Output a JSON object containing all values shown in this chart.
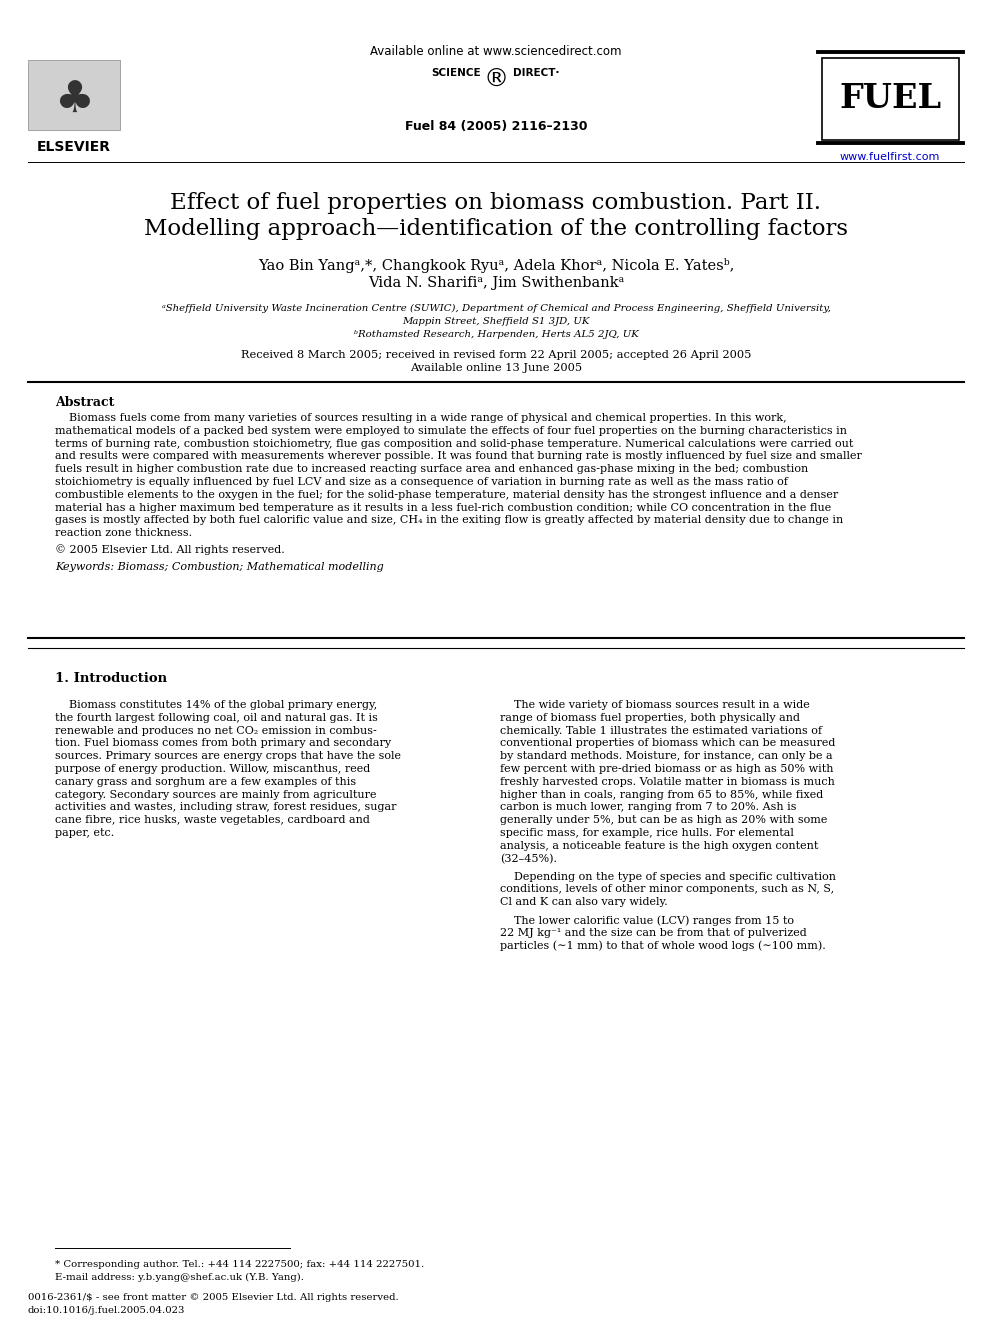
{
  "bg_color": "#ffffff",
  "header_available": "Available online at www.sciencedirect.com",
  "header_journal": "Fuel 84 (2005) 2116–2130",
  "header_website": "www.fuelfirst.com",
  "header_website_color": "#0000cc",
  "title_line1": "Effect of fuel properties on biomass combustion. Part II.",
  "title_line2": "Modelling approach—identification of the controlling factors",
  "authors1": "Yao Bin Yangᵃ,*, Changkook Ryuᵃ, Adela Khorᵃ, Nicola E. Yatesᵇ,",
  "authors2": "Vida N. Sharifiᵃ, Jim Swithenbankᵃ",
  "affil_a": "ᵃSheffield University Waste Incineration Centre (SUWIC), Department of Chemical and Process Engineering, Sheffield University,",
  "affil_a2": "Mappin Street, Sheffield S1 3JD, UK",
  "affil_b": "ᵇRothamsted Research, Harpenden, Herts AL5 2JQ, UK",
  "dates1": "Received 8 March 2005; received in revised form 22 April 2005; accepted 26 April 2005",
  "dates2": "Available online 13 June 2005",
  "abstract_title": "Abstract",
  "abstract_lines": [
    "    Biomass fuels come from many varieties of sources resulting in a wide range of physical and chemical properties. In this work,",
    "mathematical models of a packed bed system were employed to simulate the effects of four fuel properties on the burning characteristics in",
    "terms of burning rate, combustion stoichiometry, flue gas composition and solid-phase temperature. Numerical calculations were carried out",
    "and results were compared with measurements wherever possible. It was found that burning rate is mostly influenced by fuel size and smaller",
    "fuels result in higher combustion rate due to increased reacting surface area and enhanced gas-phase mixing in the bed; combustion",
    "stoichiometry is equally influenced by fuel LCV and size as a consequence of variation in burning rate as well as the mass ratio of",
    "combustible elements to the oxygen in the fuel; for the solid-phase temperature, material density has the strongest influence and a denser",
    "material has a higher maximum bed temperature as it results in a less fuel-rich combustion condition; while CO concentration in the flue",
    "gases is mostly affected by both fuel calorific value and size, CH₄ in the exiting flow is greatly affected by material density due to change in",
    "reaction zone thickness."
  ],
  "copyright": "© 2005 Elsevier Ltd. All rights reserved.",
  "keywords": "Keywords: Biomass; Combustion; Mathematical modelling",
  "section1_title": "1. Introduction",
  "intro_left_lines": [
    "    Biomass constitutes 14% of the global primary energy,",
    "the fourth largest following coal, oil and natural gas. It is",
    "renewable and produces no net CO₂ emission in combus-",
    "tion. Fuel biomass comes from both primary and secondary",
    "sources. Primary sources are energy crops that have the sole",
    "purpose of energy production. Willow, miscanthus, reed",
    "canary grass and sorghum are a few examples of this",
    "category. Secondary sources are mainly from agriculture",
    "activities and wastes, including straw, forest residues, sugar",
    "cane fibre, rice husks, waste vegetables, cardboard and",
    "paper, etc."
  ],
  "intro_right_lines": [
    "    The wide variety of biomass sources result in a wide",
    "range of biomass fuel properties, both physically and",
    "chemically. Table 1 illustrates the estimated variations of",
    "conventional properties of biomass which can be measured",
    "by standard methods. Moisture, for instance, can only be a",
    "few percent with pre-dried biomass or as high as 50% with",
    "freshly harvested crops. Volatile matter in biomass is much",
    "higher than in coals, ranging from 65 to 85%, while fixed",
    "carbon is much lower, ranging from 7 to 20%. Ash is",
    "generally under 5%, but can be as high as 20% with some",
    "specific mass, for example, rice hulls. For elemental",
    "analysis, a noticeable feature is the high oxygen content",
    "(32–45%).",
    "",
    "    Depending on the type of species and specific cultivation",
    "conditions, levels of other minor components, such as N, S,",
    "Cl and K can also vary widely.",
    "",
    "    The lower calorific value (LCV) ranges from 15 to",
    "22 MJ kg⁻¹ and the size can be from that of pulverized",
    "particles (∼1 mm) to that of whole wood logs (∼100 mm)."
  ],
  "footnote_line": "* Corresponding author. Tel.: +44 114 2227500; fax: +44 114 2227501.",
  "footnote_email": "E-mail address: y.b.yang@shef.ac.uk (Y.B. Yang).",
  "footnote_issn": "0016-2361/$ - see front matter © 2005 Elsevier Ltd. All rights reserved.",
  "footnote_doi": "doi:10.1016/j.fuel.2005.04.023",
  "elsevier_label": "ELSEVIER",
  "scidir_line1": "SCIENCE",
  "scidir_line2": "DIRECT"
}
